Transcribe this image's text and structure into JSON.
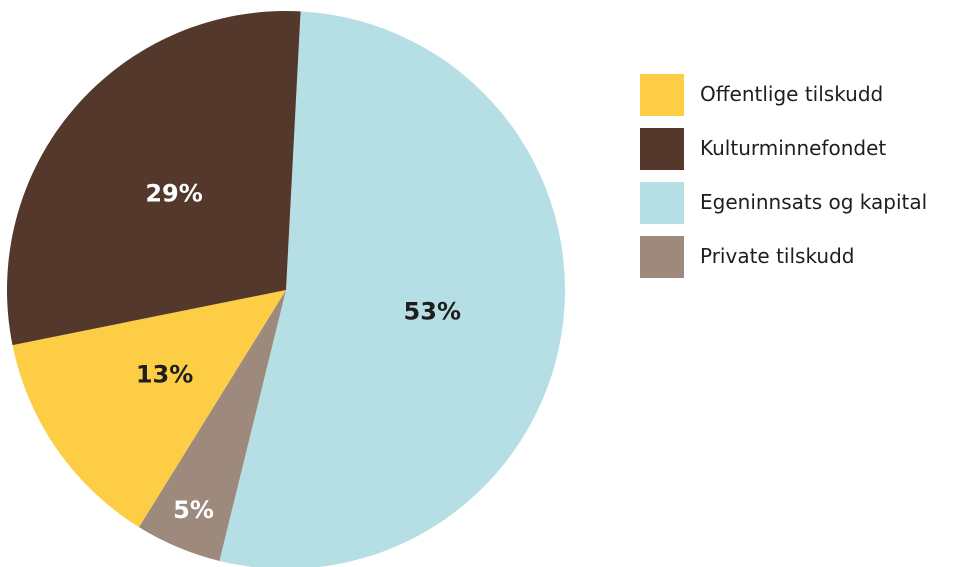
{
  "chart_data": {
    "type": "pie",
    "slices": [
      {
        "label": "Egeninnsats og kapital",
        "value": 53,
        "value_label": "53%",
        "color": "#b5dfe5",
        "label_color": "#1e1e1e"
      },
      {
        "label": "Private tilskudd",
        "value": 5,
        "value_label": "5%",
        "color": "#9e8a7d",
        "label_color": "#ffffff"
      },
      {
        "label": "Offentlige tilskudd",
        "value": 13,
        "value_label": "13%",
        "color": "#fdcd45",
        "label_color": "#1e1e1e"
      },
      {
        "label": "Kulturminnefondet",
        "value": 29,
        "value_label": "29%",
        "color": "#54382c",
        "label_color": "#ffffff"
      }
    ],
    "legend": {
      "position": "right",
      "items": [
        {
          "label": "Offentlige tilskudd",
          "color": "#fdcd45"
        },
        {
          "label": "Kulturminnefondet",
          "color": "#54382c"
        },
        {
          "label": "Egeninnsats og kapital",
          "color": "#b5dfe5"
        },
        {
          "label": "Private tilskudd",
          "color": "#9e8a7d"
        }
      ]
    }
  }
}
